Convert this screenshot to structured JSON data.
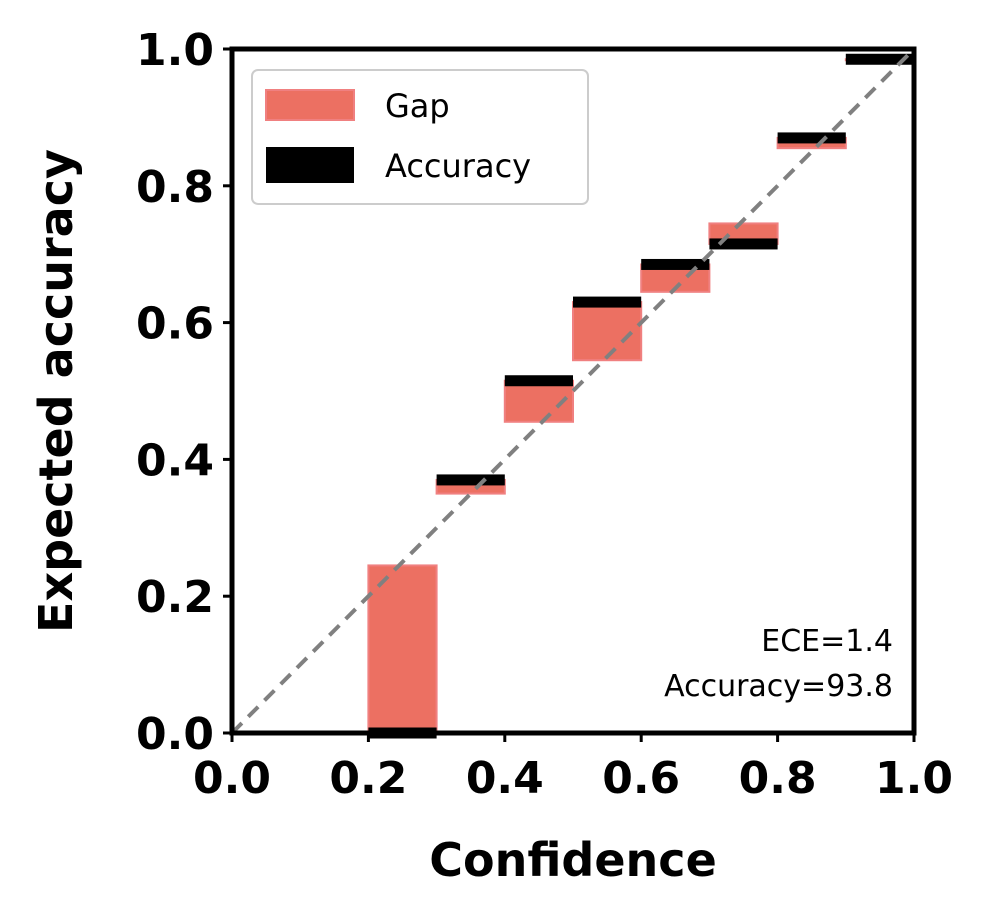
{
  "chart_data": {
    "type": "bar",
    "xlabel": "Confidence",
    "ylabel": "Expected accuracy",
    "xlim": [
      0,
      1
    ],
    "ylim": [
      0,
      1
    ],
    "x_ticks": [
      "0.0",
      "0.2",
      "0.4",
      "0.6",
      "0.8",
      "1.0"
    ],
    "y_ticks": [
      "0.0",
      "0.2",
      "0.4",
      "0.6",
      "0.8",
      "1.0"
    ],
    "bin_width": 0.1,
    "legend": {
      "placement": "top-left",
      "entries": [
        {
          "label": "Gap",
          "color": "#ec7062"
        },
        {
          "label": "Accuracy",
          "color": "#000000"
        }
      ]
    },
    "diagonal": {
      "style": "dashed",
      "color": "#808080"
    },
    "bins": [
      {
        "bin_start": 0.2,
        "confidence": 0.245,
        "accuracy": 0.0
      },
      {
        "bin_start": 0.3,
        "confidence": 0.35,
        "accuracy": 0.37
      },
      {
        "bin_start": 0.4,
        "confidence": 0.455,
        "accuracy": 0.515
      },
      {
        "bin_start": 0.5,
        "confidence": 0.545,
        "accuracy": 0.63
      },
      {
        "bin_start": 0.6,
        "confidence": 0.645,
        "accuracy": 0.685
      },
      {
        "bin_start": 0.7,
        "confidence": 0.745,
        "accuracy": 0.715
      },
      {
        "bin_start": 0.8,
        "confidence": 0.855,
        "accuracy": 0.87
      },
      {
        "bin_start": 0.9,
        "confidence": 0.985,
        "accuracy": 0.985
      }
    ],
    "annotations": [
      "ECE=1.4",
      "Accuracy=93.8"
    ],
    "colors": {
      "gap": "#ec7062",
      "gap_edge": "#f08080",
      "accuracy": "#000000",
      "diagonal": "#808080"
    }
  }
}
